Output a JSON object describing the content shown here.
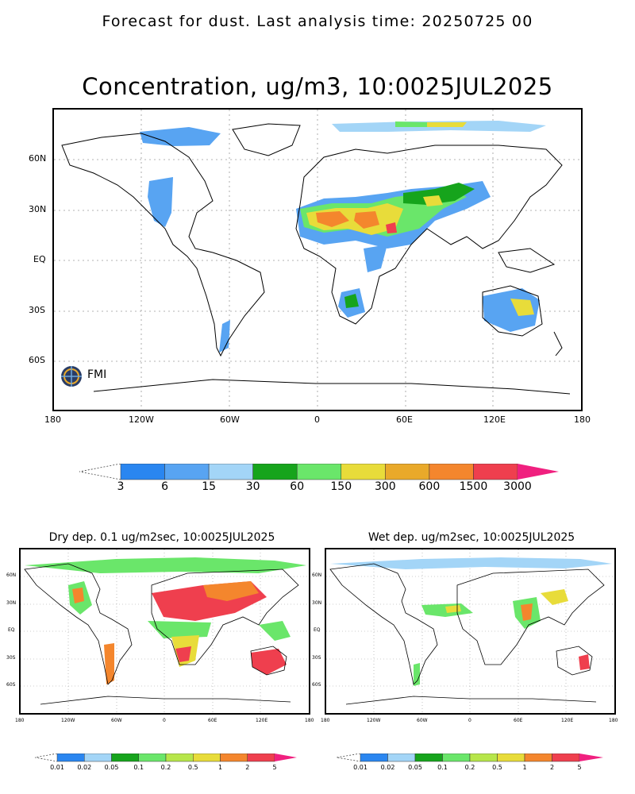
{
  "header": {
    "suptitle": "Forecast for dust. Last analysis time: 20250725 00"
  },
  "main_map": {
    "title": "Concentration, ug/m3, 10:0025JUL2025",
    "lat_ticks": [
      "60N",
      "30N",
      "EQ",
      "30S",
      "60S"
    ],
    "lon_ticks": [
      "180",
      "120W",
      "60W",
      "0",
      "60E",
      "120E",
      "180"
    ],
    "logo": "FMI",
    "colorbar": {
      "labels": [
        "3",
        "6",
        "15",
        "30",
        "60",
        "150",
        "300",
        "600",
        "1500",
        "3000"
      ],
      "colors": [
        "#2a86f0",
        "#58a4f2",
        "#a3d5f7",
        "#16a41c",
        "#6ae66a",
        "#e8dc3a",
        "#e9a92a",
        "#f4862d",
        "#ef3f4e",
        "#f0207f"
      ]
    }
  },
  "dry_map": {
    "title": "Dry dep. 0.1 ug/m2sec, 10:0025JUL2025",
    "lat_ticks": [
      "60N",
      "30N",
      "EQ",
      "30S",
      "60S"
    ],
    "lon_ticks": [
      "180",
      "120W",
      "60W",
      "0",
      "60E",
      "120E",
      "180"
    ],
    "colorbar": {
      "labels": [
        "0.01",
        "0.02",
        "0.05",
        "0.1",
        "0.2",
        "0.5",
        "1",
        "2",
        "5"
      ],
      "colors": [
        "#2a86f0",
        "#a3d5f7",
        "#16a41c",
        "#6ae66a",
        "#b7e64a",
        "#e8dc3a",
        "#f4862d",
        "#ef3f4e",
        "#f0207f"
      ]
    }
  },
  "wet_map": {
    "title": "Wet dep. ug/m2sec, 10:0025JUL2025",
    "lat_ticks": [
      "60N",
      "30N",
      "EQ",
      "30S",
      "60S"
    ],
    "lon_ticks": [
      "180",
      "120W",
      "60W",
      "0",
      "60E",
      "120E",
      "180"
    ],
    "colorbar": {
      "labels": [
        "0.01",
        "0.02",
        "0.05",
        "0.1",
        "0.2",
        "0.5",
        "1",
        "2",
        "5"
      ],
      "colors": [
        "#2a86f0",
        "#a3d5f7",
        "#16a41c",
        "#6ae66a",
        "#b7e64a",
        "#e8dc3a",
        "#f4862d",
        "#ef3f4e",
        "#f0207f"
      ]
    }
  }
}
